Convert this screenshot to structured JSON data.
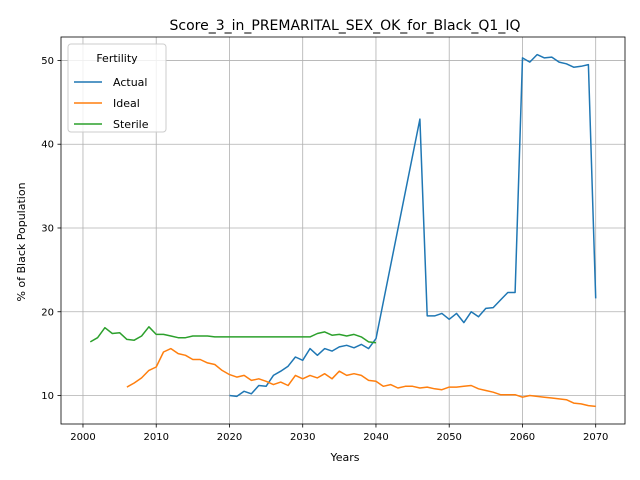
{
  "chart_data": {
    "type": "line",
    "title": "Score_3_in_PREMARITAL_SEX_OK_for_Black_Q1_IQ",
    "xlabel": "Years",
    "ylabel": "% of Black Population",
    "xlim": [
      1997,
      2074
    ],
    "ylim": [
      6.6,
      52.8
    ],
    "xticks": [
      2000,
      2010,
      2020,
      2030,
      2040,
      2050,
      2060,
      2070
    ],
    "yticks": [
      10,
      20,
      30,
      40,
      50
    ],
    "grid": true,
    "legend": {
      "title": "Fertility",
      "placement": "top-left"
    },
    "series": [
      {
        "name": "Actual",
        "color": "#1f77b4",
        "x": [
          2020,
          2021,
          2022,
          2023,
          2024,
          2025,
          2026,
          2027,
          2028,
          2029,
          2030,
          2031,
          2032,
          2033,
          2034,
          2035,
          2036,
          2037,
          2038,
          2039,
          2040,
          2046,
          2047,
          2048,
          2049,
          2050,
          2051,
          2052,
          2053,
          2054,
          2055,
          2056,
          2057,
          2058,
          2059,
          2060,
          2061,
          2062,
          2063,
          2064,
          2065,
          2066,
          2067,
          2068,
          2069,
          2070
        ],
        "y": [
          10.0,
          9.9,
          10.5,
          10.2,
          11.2,
          11.1,
          12.4,
          12.9,
          13.5,
          14.6,
          14.2,
          15.6,
          14.8,
          15.6,
          15.3,
          15.8,
          16.0,
          15.7,
          16.1,
          15.6,
          16.8,
          43.0,
          19.5,
          19.5,
          19.8,
          19.1,
          19.8,
          18.7,
          20.0,
          19.4,
          20.4,
          20.5,
          21.4,
          22.3,
          22.3,
          50.3,
          49.8,
          50.7,
          50.3,
          50.4,
          49.8,
          49.6,
          49.2,
          49.3,
          49.5,
          21.6
        ]
      },
      {
        "name": "Ideal",
        "color": "#ff7f0e",
        "x": [
          2006,
          2007,
          2008,
          2009,
          2010,
          2011,
          2012,
          2013,
          2014,
          2015,
          2016,
          2017,
          2018,
          2019,
          2020,
          2021,
          2022,
          2023,
          2024,
          2025,
          2026,
          2027,
          2028,
          2029,
          2030,
          2031,
          2032,
          2033,
          2034,
          2035,
          2036,
          2037,
          2038,
          2039,
          2040,
          2041,
          2042,
          2043,
          2044,
          2045,
          2046,
          2047,
          2048,
          2049,
          2050,
          2051,
          2052,
          2053,
          2054,
          2055,
          2056,
          2057,
          2058,
          2059,
          2060,
          2061,
          2062,
          2063,
          2064,
          2065,
          2066,
          2067,
          2068,
          2069,
          2070
        ],
        "y": [
          11.0,
          11.5,
          12.1,
          13.0,
          13.4,
          15.2,
          15.6,
          15.0,
          14.8,
          14.3,
          14.3,
          13.9,
          13.7,
          13.0,
          12.5,
          12.2,
          12.4,
          11.8,
          12.0,
          11.7,
          11.3,
          11.6,
          11.2,
          12.4,
          12.0,
          12.4,
          12.1,
          12.6,
          12.0,
          12.9,
          12.4,
          12.6,
          12.4,
          11.8,
          11.7,
          11.1,
          11.3,
          10.9,
          11.1,
          11.1,
          10.9,
          11.0,
          10.8,
          10.7,
          11.0,
          11.0,
          11.1,
          11.2,
          10.8,
          10.6,
          10.4,
          10.1,
          10.1,
          10.1,
          9.8,
          10.0,
          9.9,
          9.8,
          9.7,
          9.6,
          9.5,
          9.1,
          9.0,
          8.8,
          8.7
        ]
      },
      {
        "name": "Sterile",
        "color": "#2ca02c",
        "x": [
          2001,
          2002,
          2003,
          2004,
          2005,
          2006,
          2007,
          2008,
          2009,
          2010,
          2011,
          2012,
          2013,
          2014,
          2015,
          2016,
          2017,
          2018,
          2019,
          2020,
          2021,
          2022,
          2023,
          2024,
          2025,
          2026,
          2027,
          2028,
          2029,
          2030,
          2031,
          2032,
          2033,
          2034,
          2035,
          2036,
          2037,
          2038,
          2039,
          2040
        ],
        "y": [
          16.4,
          16.9,
          18.1,
          17.4,
          17.5,
          16.7,
          16.6,
          17.1,
          18.2,
          17.3,
          17.3,
          17.1,
          16.9,
          16.9,
          17.1,
          17.1,
          17.1,
          17.0,
          17.0,
          17.0,
          17.0,
          17.0,
          17.0,
          17.0,
          17.0,
          17.0,
          17.0,
          17.0,
          17.0,
          17.0,
          17.0,
          17.4,
          17.6,
          17.2,
          17.3,
          17.1,
          17.3,
          17.0,
          16.4,
          16.3
        ]
      }
    ]
  }
}
